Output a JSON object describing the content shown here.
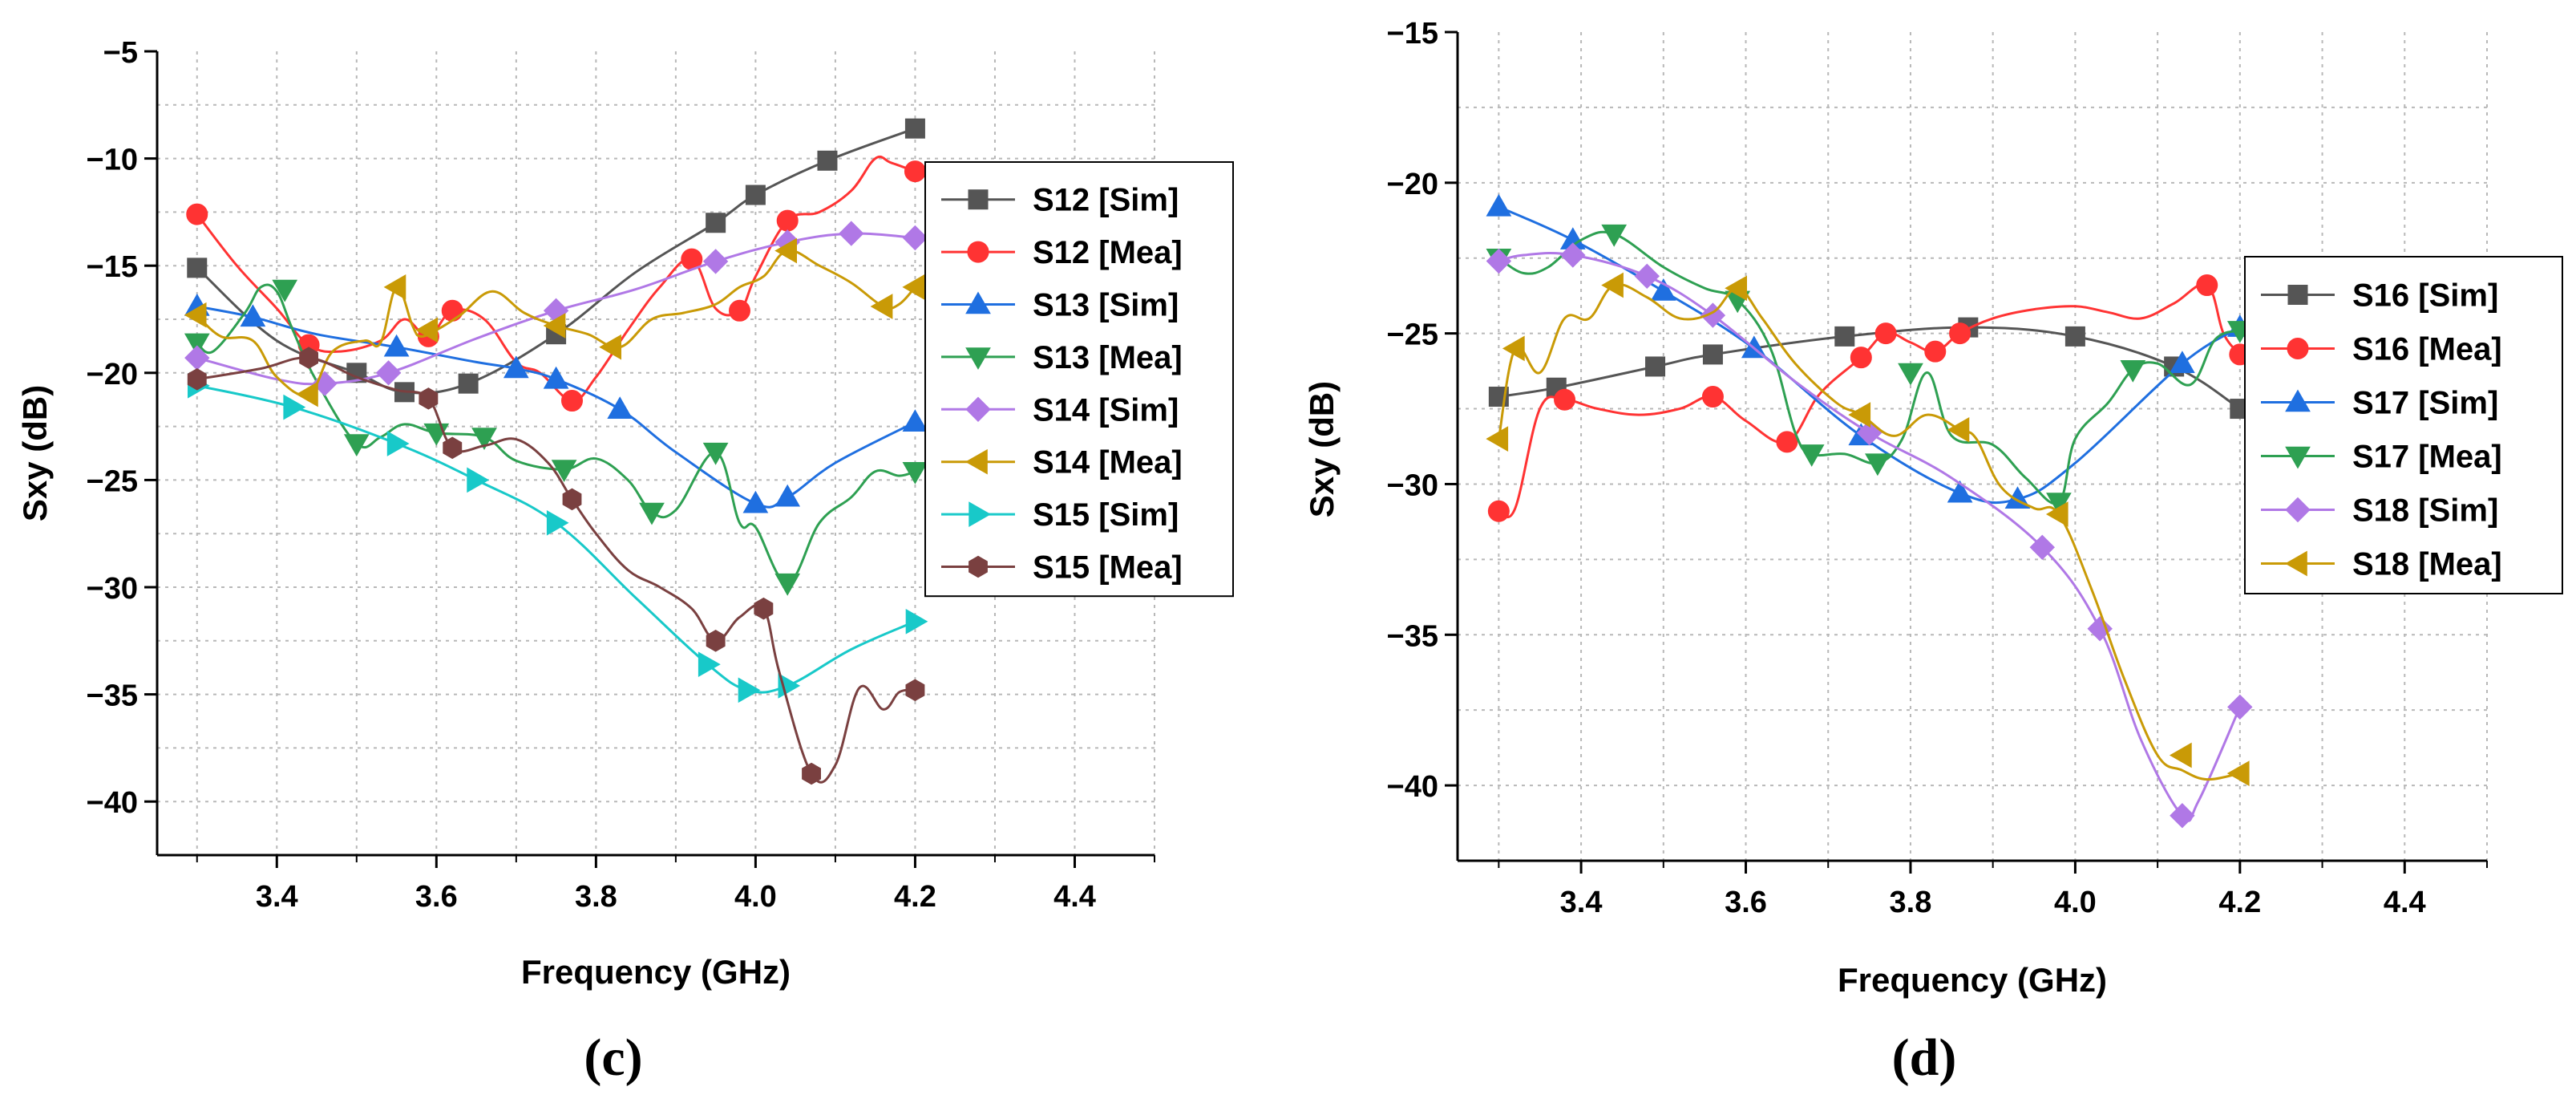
{
  "chart_data": [
    {
      "type": "line",
      "panel_label": "(c)",
      "xlabel": "Frequency (GHz)",
      "ylabel": "Sxy (dB)",
      "xlim": [
        3.25,
        4.5
      ],
      "ylim": [
        -42.5,
        -5
      ],
      "xticks": [
        3.4,
        3.6,
        3.8,
        4.0,
        4.2,
        4.4
      ],
      "xtick_labels": [
        "3.4",
        "3.6",
        "3.8",
        "4.0",
        "4.2",
        "4.4"
      ],
      "yticks": [
        -40,
        -35,
        -30,
        -25,
        -20,
        -15,
        -10,
        -5
      ],
      "ytick_labels": [
        "−40",
        "−35",
        "−30",
        "−25",
        "−20",
        "−15",
        "−10",
        "−5"
      ],
      "grid": true,
      "legend_position": "top-right",
      "series": [
        {
          "name": "S12 [Sim]",
          "color": "#555555",
          "marker": "square",
          "x": [
            3.3,
            3.4,
            3.5,
            3.56,
            3.64,
            3.75,
            3.85,
            3.95,
            4.0,
            4.09,
            4.2
          ],
          "y": [
            -15.1,
            -18.5,
            -20.0,
            -20.9,
            -20.5,
            -18.2,
            -15.3,
            -13.0,
            -11.7,
            -10.1,
            -8.6
          ],
          "markers_x": [
            3.3,
            3.5,
            3.56,
            3.64,
            3.75,
            3.95,
            4.0,
            4.09,
            4.2
          ],
          "markers_y": [
            -15.1,
            -20.0,
            -20.9,
            -20.5,
            -18.2,
            -13.0,
            -11.7,
            -10.1,
            -8.6
          ]
        },
        {
          "name": "S12 [Mea]",
          "color": "#ff3333",
          "marker": "circle",
          "x": [
            3.3,
            3.35,
            3.4,
            3.44,
            3.48,
            3.53,
            3.56,
            3.59,
            3.62,
            3.66,
            3.7,
            3.73,
            3.77,
            3.8,
            3.84,
            3.88,
            3.92,
            3.95,
            3.98,
            4.0,
            4.04,
            4.08,
            4.12,
            4.15,
            4.17,
            4.2
          ],
          "y": [
            -12.6,
            -15.0,
            -17.0,
            -18.7,
            -19.0,
            -18.5,
            -17.5,
            -18.3,
            -17.1,
            -17.5,
            -19.5,
            -20.0,
            -21.3,
            -20.2,
            -18.0,
            -16.0,
            -14.7,
            -17.0,
            -17.1,
            -15.5,
            -12.9,
            -12.5,
            -11.5,
            -10.0,
            -10.2,
            -10.6
          ],
          "markers_x": [
            3.3,
            3.44,
            3.59,
            3.62,
            3.77,
            3.92,
            3.98,
            4.04,
            4.2
          ],
          "markers_y": [
            -12.6,
            -18.7,
            -18.3,
            -17.1,
            -21.3,
            -14.7,
            -17.1,
            -12.9,
            -10.6
          ]
        },
        {
          "name": "S13 [Sim]",
          "color": "#1f6fe0",
          "marker": "triangle-up",
          "x": [
            3.3,
            3.37,
            3.45,
            3.55,
            3.65,
            3.7,
            3.75,
            3.83,
            3.9,
            4.0,
            4.04,
            4.1,
            4.2
          ],
          "y": [
            -16.9,
            -17.4,
            -18.2,
            -18.8,
            -19.5,
            -19.8,
            -20.3,
            -21.7,
            -23.7,
            -26.1,
            -25.8,
            -24.2,
            -22.3
          ],
          "markers_x": [
            3.3,
            3.37,
            3.55,
            3.7,
            3.75,
            3.83,
            4.0,
            4.04,
            4.2
          ],
          "markers_y": [
            -16.9,
            -17.4,
            -18.8,
            -19.8,
            -20.3,
            -21.7,
            -26.1,
            -25.8,
            -22.3
          ]
        },
        {
          "name": "S13 [Mea]",
          "color": "#2ea052",
          "marker": "triangle-down",
          "x": [
            3.3,
            3.32,
            3.36,
            3.38,
            3.4,
            3.42,
            3.45,
            3.5,
            3.53,
            3.56,
            3.6,
            3.66,
            3.7,
            3.76,
            3.8,
            3.84,
            3.87,
            3.9,
            3.95,
            3.98,
            4.0,
            4.04,
            4.08,
            4.12,
            4.15,
            4.18,
            4.2
          ],
          "y": [
            -18.6,
            -19.0,
            -17.2,
            -16.0,
            -16.2,
            -18.0,
            -20.4,
            -23.3,
            -23.0,
            -22.4,
            -22.8,
            -23.0,
            -24.1,
            -24.5,
            -24.0,
            -25.0,
            -26.5,
            -26.4,
            -23.7,
            -27.0,
            -27.2,
            -29.8,
            -27.0,
            -25.8,
            -24.6,
            -24.8,
            -24.6
          ],
          "markers_x": [
            3.3,
            3.41,
            3.5,
            3.6,
            3.66,
            3.76,
            3.87,
            3.95,
            4.04,
            4.2
          ],
          "markers_y": [
            -18.6,
            -16.1,
            -23.3,
            -22.8,
            -23.0,
            -24.5,
            -26.5,
            -23.7,
            -29.8,
            -24.6
          ]
        },
        {
          "name": "S14 [Sim]",
          "color": "#b078e6",
          "marker": "diamond",
          "x": [
            3.3,
            3.4,
            3.46,
            3.54,
            3.65,
            3.75,
            3.85,
            3.95,
            4.04,
            4.12,
            4.2
          ],
          "y": [
            -19.3,
            -20.3,
            -20.5,
            -20.0,
            -18.4,
            -17.1,
            -16.1,
            -14.8,
            -13.9,
            -13.5,
            -13.7
          ],
          "markers_x": [
            3.3,
            3.46,
            3.54,
            3.75,
            3.95,
            4.04,
            4.12,
            4.2
          ],
          "markers_y": [
            -19.3,
            -20.5,
            -20.0,
            -17.1,
            -14.8,
            -13.9,
            -13.5,
            -13.7
          ]
        },
        {
          "name": "S14 [Mea]",
          "color": "#c99a06",
          "marker": "triangle-left",
          "x": [
            3.3,
            3.33,
            3.37,
            3.4,
            3.44,
            3.47,
            3.51,
            3.53,
            3.55,
            3.57,
            3.58,
            3.6,
            3.63,
            3.67,
            3.71,
            3.75,
            3.79,
            3.83,
            3.87,
            3.91,
            3.95,
            3.98,
            4.01,
            4.04,
            4.08,
            4.12,
            4.16,
            4.18,
            4.2
          ],
          "y": [
            -17.3,
            -18.3,
            -18.5,
            -20.2,
            -21.0,
            -19.0,
            -18.5,
            -18.6,
            -16.0,
            -17.8,
            -18.3,
            -18.0,
            -17.3,
            -16.2,
            -17.2,
            -17.8,
            -18.2,
            -18.8,
            -17.5,
            -17.2,
            -16.8,
            -16.0,
            -15.5,
            -14.3,
            -15.0,
            -15.8,
            -16.9,
            -16.8,
            -16.0
          ],
          "markers_x": [
            3.3,
            3.44,
            3.55,
            3.59,
            3.75,
            3.82,
            4.04,
            4.16,
            4.2
          ],
          "markers_y": [
            -17.3,
            -21.0,
            -16.0,
            -18.0,
            -17.8,
            -18.8,
            -14.3,
            -16.9,
            -16.0
          ]
        },
        {
          "name": "S15 [Sim]",
          "color": "#18c9c9",
          "marker": "triangle-right",
          "x": [
            3.3,
            3.42,
            3.55,
            3.65,
            3.75,
            3.85,
            3.94,
            3.99,
            4.04,
            4.12,
            4.2
          ],
          "y": [
            -20.6,
            -21.6,
            -23.3,
            -25.0,
            -27.0,
            -30.5,
            -33.6,
            -34.8,
            -34.6,
            -32.9,
            -31.6
          ],
          "markers_x": [
            3.3,
            3.42,
            3.55,
            3.65,
            3.75,
            3.94,
            3.99,
            4.04,
            4.2
          ],
          "markers_y": [
            -20.6,
            -21.6,
            -23.3,
            -25.0,
            -27.0,
            -33.6,
            -34.8,
            -34.6,
            -31.6
          ]
        },
        {
          "name": "S15 [Mea]",
          "color": "#7a4040",
          "marker": "hexagon",
          "x": [
            3.3,
            3.38,
            3.44,
            3.5,
            3.55,
            3.59,
            3.62,
            3.66,
            3.7,
            3.74,
            3.77,
            3.8,
            3.84,
            3.88,
            3.92,
            3.95,
            3.98,
            4.01,
            4.03,
            4.07,
            4.1,
            4.13,
            4.16,
            4.18,
            4.2
          ],
          "y": [
            -20.3,
            -19.8,
            -19.3,
            -20.2,
            -20.8,
            -21.2,
            -23.5,
            -23.4,
            -23.1,
            -24.2,
            -25.9,
            -27.5,
            -29.2,
            -30.0,
            -31.0,
            -32.5,
            -31.4,
            -31.0,
            -34.0,
            -38.7,
            -38.3,
            -34.7,
            -35.7,
            -34.9,
            -34.8
          ],
          "markers_x": [
            3.3,
            3.44,
            3.59,
            3.62,
            3.77,
            3.95,
            4.01,
            4.07,
            4.2
          ],
          "markers_y": [
            -20.3,
            -19.3,
            -21.2,
            -23.5,
            -25.9,
            -32.5,
            -31.0,
            -38.7,
            -34.8
          ]
        }
      ]
    },
    {
      "type": "line",
      "panel_label": "(d)",
      "xlabel": "Frequency (GHz)",
      "ylabel": "Sxy (dB)",
      "xlim": [
        3.25,
        4.5
      ],
      "ylim": [
        -42.5,
        -15
      ],
      "xticks": [
        3.4,
        3.6,
        3.8,
        4.0,
        4.2,
        4.4
      ],
      "xtick_labels": [
        "3.4",
        "3.6",
        "3.8",
        "4.0",
        "4.2",
        "4.4"
      ],
      "yticks": [
        -40,
        -35,
        -30,
        -25,
        -20,
        -15
      ],
      "ytick_labels": [
        "−40",
        "−35",
        "−30",
        "−25",
        "−20",
        "−15"
      ],
      "grid": true,
      "legend_position": "right",
      "series": [
        {
          "name": "S16 [Sim]",
          "color": "#555555",
          "marker": "square",
          "x": [
            3.3,
            3.37,
            3.49,
            3.56,
            3.72,
            3.87,
            4.0,
            4.12,
            4.2
          ],
          "y": [
            -27.1,
            -26.8,
            -26.1,
            -25.7,
            -25.1,
            -24.8,
            -25.1,
            -26.1,
            -27.5
          ],
          "markers_x": [
            3.3,
            3.37,
            3.49,
            3.56,
            3.72,
            3.87,
            4.0,
            4.12,
            4.2
          ],
          "markers_y": [
            -27.1,
            -26.8,
            -26.1,
            -25.7,
            -25.1,
            -24.8,
            -25.1,
            -26.1,
            -27.5
          ]
        },
        {
          "name": "S16 [Mea]",
          "color": "#ff3333",
          "marker": "circle",
          "x": [
            3.3,
            3.32,
            3.35,
            3.38,
            3.42,
            3.47,
            3.52,
            3.56,
            3.6,
            3.65,
            3.69,
            3.74,
            3.77,
            3.8,
            3.83,
            3.86,
            3.9,
            3.95,
            4.0,
            4.04,
            4.08,
            4.12,
            4.16,
            4.18,
            4.2
          ],
          "y": [
            -30.9,
            -30.8,
            -27.5,
            -27.2,
            -27.5,
            -27.7,
            -27.5,
            -27.1,
            -27.9,
            -28.6,
            -27.0,
            -25.8,
            -25.0,
            -25.3,
            -25.6,
            -25.0,
            -24.5,
            -24.2,
            -24.1,
            -24.3,
            -24.5,
            -24.0,
            -23.4,
            -25.0,
            -25.7
          ],
          "markers_x": [
            3.3,
            3.38,
            3.56,
            3.65,
            3.74,
            3.77,
            3.83,
            3.86,
            4.16,
            4.2
          ],
          "markers_y": [
            -30.9,
            -27.2,
            -27.1,
            -28.6,
            -25.8,
            -25.0,
            -25.6,
            -25.0,
            -23.4,
            -25.7
          ]
        },
        {
          "name": "S17 [Sim]",
          "color": "#1f6fe0",
          "marker": "triangle-up",
          "x": [
            3.3,
            3.39,
            3.5,
            3.61,
            3.74,
            3.86,
            3.93,
            4.0,
            4.13,
            4.2
          ],
          "y": [
            -20.8,
            -21.9,
            -23.6,
            -25.5,
            -28.4,
            -30.3,
            -30.5,
            -29.3,
            -26.0,
            -24.8
          ],
          "markers_x": [
            3.3,
            3.39,
            3.5,
            3.61,
            3.74,
            3.86,
            3.93,
            4.13,
            4.2
          ],
          "markers_y": [
            -20.8,
            -21.9,
            -23.6,
            -25.5,
            -28.4,
            -30.3,
            -30.5,
            -26.0,
            -24.8
          ]
        },
        {
          "name": "S17 [Mea]",
          "color": "#2ea052",
          "marker": "triangle-down",
          "x": [
            3.3,
            3.33,
            3.36,
            3.4,
            3.44,
            3.5,
            3.55,
            3.59,
            3.63,
            3.66,
            3.68,
            3.72,
            3.76,
            3.79,
            3.82,
            3.85,
            3.9,
            3.94,
            3.98,
            4.0,
            4.04,
            4.07,
            4.1,
            4.14,
            4.17,
            4.2
          ],
          "y": [
            -22.5,
            -23.0,
            -22.8,
            -21.9,
            -21.7,
            -22.8,
            -23.5,
            -23.9,
            -25.5,
            -28.3,
            -29.0,
            -29.0,
            -29.3,
            -28.5,
            -26.3,
            -28.4,
            -28.7,
            -29.8,
            -30.6,
            -28.5,
            -27.3,
            -26.2,
            -26.0,
            -26.7,
            -25.2,
            -24.9
          ],
          "markers_x": [
            3.3,
            3.44,
            3.59,
            3.68,
            3.76,
            3.8,
            3.98,
            4.07,
            4.2
          ],
          "markers_y": [
            -22.5,
            -21.7,
            -23.9,
            -29.0,
            -29.3,
            -26.3,
            -30.6,
            -26.2,
            -24.9
          ]
        },
        {
          "name": "S18 [Sim]",
          "color": "#b078e6",
          "marker": "diamond",
          "x": [
            3.3,
            3.33,
            3.39,
            3.48,
            3.56,
            3.66,
            3.75,
            3.85,
            3.96,
            4.03,
            4.08,
            4.13,
            4.15,
            4.2
          ],
          "y": [
            -22.6,
            -22.4,
            -22.4,
            -23.1,
            -24.4,
            -26.6,
            -28.3,
            -29.8,
            -32.1,
            -34.8,
            -38.5,
            -41.0,
            -40.5,
            -37.4
          ],
          "markers_x": [
            3.3,
            3.39,
            3.48,
            3.56,
            3.75,
            3.96,
            4.03,
            4.13,
            4.2
          ],
          "markers_y": [
            -22.6,
            -22.4,
            -23.1,
            -24.4,
            -28.3,
            -32.1,
            -34.8,
            -41.0,
            -37.4
          ]
        },
        {
          "name": "S18 [Mea]",
          "color": "#c99a06",
          "marker": "triangle-left",
          "x": [
            3.3,
            3.32,
            3.35,
            3.38,
            3.41,
            3.44,
            3.48,
            3.52,
            3.56,
            3.59,
            3.62,
            3.66,
            3.71,
            3.74,
            3.78,
            3.82,
            3.86,
            3.88,
            3.91,
            3.95,
            3.98,
            4.02,
            4.06,
            4.1,
            4.13,
            4.16,
            4.2
          ],
          "y": [
            -28.5,
            -25.5,
            -26.3,
            -24.5,
            -24.5,
            -23.4,
            -23.8,
            -24.5,
            -24.3,
            -23.5,
            -24.5,
            -26.0,
            -27.3,
            -27.7,
            -28.4,
            -27.7,
            -28.2,
            -28.5,
            -30.1,
            -30.8,
            -31.0,
            -33.5,
            -36.5,
            -39.0,
            -39.5,
            -39.8,
            -39.6
          ],
          "markers_x": [
            3.3,
            3.32,
            3.44,
            3.59,
            3.74,
            3.86,
            3.98,
            4.13,
            4.2
          ],
          "markers_y": [
            -28.5,
            -25.5,
            -23.4,
            -23.5,
            -27.7,
            -28.2,
            -31.0,
            -39.0,
            -39.6
          ]
        }
      ]
    }
  ]
}
